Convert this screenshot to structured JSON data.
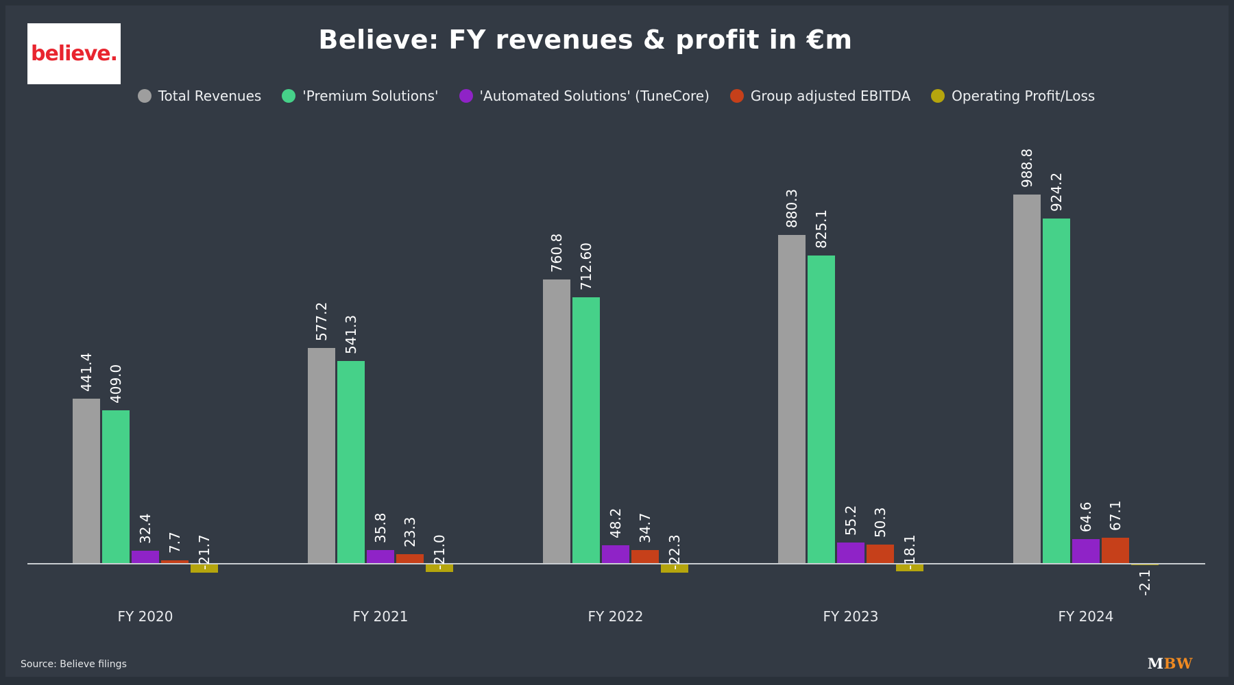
{
  "header": {
    "logo_text": "believe.",
    "title": "Believe: FY revenues & profit in €m"
  },
  "chart_data": {
    "type": "bar",
    "title": "Believe: FY revenues & profit in €m",
    "xlabel": "",
    "ylabel": "",
    "unit": "€m",
    "grid": false,
    "legend_position": "top",
    "ylim": [
      -40,
      1240
    ],
    "categories": [
      "FY 2020",
      "FY 2021",
      "FY 2022",
      "FY 2023",
      "FY 2024"
    ],
    "series": [
      {
        "name": "Total Revenues",
        "color": "#9e9e9e",
        "values": [
          441.4,
          577.2,
          760.8,
          880.3,
          988.8
        ],
        "labels": [
          "441.4",
          "577.2",
          "760.8",
          "880.3",
          "988.8"
        ]
      },
      {
        "name": "'Premium Solutions'",
        "color": "#46d189",
        "values": [
          409.0,
          541.3,
          712.6,
          825.1,
          924.2
        ],
        "labels": [
          "409.0",
          "541.3",
          "712.60",
          "825.1",
          "924.2"
        ]
      },
      {
        "name": "'Automated Solutions' (TuneCore)",
        "color": "#8f23c7",
        "values": [
          32.4,
          35.8,
          48.2,
          55.2,
          64.6
        ],
        "labels": [
          "32.4",
          "35.8",
          "48.2",
          "55.2",
          "64.6"
        ]
      },
      {
        "name": "Group adjusted EBITDA",
        "color": "#c6401a",
        "values": [
          7.7,
          23.3,
          34.7,
          50.3,
          67.1
        ],
        "labels": [
          "7.7",
          "23.3",
          "34.7",
          "50.3",
          "67.1"
        ]
      },
      {
        "name": "Operating Profit/Loss",
        "color": "#b5a50d",
        "values": [
          -21.7,
          -21.0,
          -22.3,
          -18.1,
          -2.1
        ],
        "labels": [
          "-21.7",
          "-21.0",
          "-22.3",
          "-18.1",
          "-2.1"
        ]
      }
    ]
  },
  "footer": {
    "source": "Source: Believe filings",
    "brand_left": "M",
    "brand_right": "BW"
  },
  "colors": {
    "background": "#333a44",
    "frame": "#2a313a",
    "axis_line": "#c9cdd1",
    "logo_red": "#e8252f",
    "brand_orange": "#f08a21",
    "text": "#eef0f2"
  }
}
